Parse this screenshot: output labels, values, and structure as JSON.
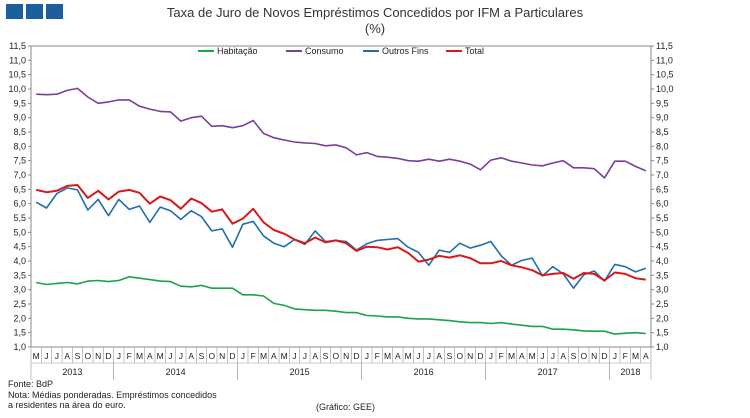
{
  "colors": {
    "habitacao": "#1aa34a",
    "consumo": "#7b3f98",
    "outros": "#1f6fae",
    "total": "#d7191c",
    "logo": "#1d5f9e"
  },
  "chart_data": {
    "type": "line",
    "title": "Taxa de Juro de Novos Empréstimos Concedidos por IFM a Particulares",
    "subtitle": "(%)",
    "ylim": [
      1.0,
      11.5
    ],
    "ytick_step": 0.5,
    "month_labels": [
      "M",
      "J",
      "J",
      "A",
      "S",
      "O",
      "N",
      "D",
      "J",
      "F",
      "M",
      "A",
      "M",
      "J",
      "J",
      "A",
      "S",
      "O",
      "N",
      "D",
      "J",
      "F",
      "M",
      "A",
      "M",
      "J",
      "J",
      "A",
      "S",
      "O",
      "N",
      "D",
      "J",
      "F",
      "M",
      "A",
      "M",
      "J",
      "J",
      "A",
      "S",
      "O",
      "N",
      "D",
      "J",
      "F",
      "M",
      "A",
      "M",
      "J",
      "J",
      "A",
      "S",
      "O",
      "N",
      "D",
      "J",
      "F",
      "M",
      "A"
    ],
    "year_labels": [
      {
        "label": "2013",
        "start": 0,
        "end": 7
      },
      {
        "label": "2014",
        "start": 8,
        "end": 19
      },
      {
        "label": "2015",
        "start": 20,
        "end": 31
      },
      {
        "label": "2016",
        "start": 32,
        "end": 43
      },
      {
        "label": "2017",
        "start": 44,
        "end": 55
      },
      {
        "label": "2018",
        "start": 56,
        "end": 59
      }
    ],
    "series": [
      {
        "name": "Habitação",
        "key": "habitacao",
        "values": [
          3.25,
          3.18,
          3.22,
          3.25,
          3.2,
          3.3,
          3.32,
          3.28,
          3.32,
          3.45,
          3.4,
          3.35,
          3.3,
          3.28,
          3.12,
          3.1,
          3.15,
          3.05,
          3.05,
          3.05,
          2.82,
          2.82,
          2.78,
          2.52,
          2.45,
          2.33,
          2.3,
          2.28,
          2.28,
          2.25,
          2.2,
          2.2,
          2.1,
          2.08,
          2.05,
          2.05,
          2.0,
          1.98,
          1.98,
          1.95,
          1.92,
          1.88,
          1.85,
          1.85,
          1.82,
          1.85,
          1.8,
          1.76,
          1.72,
          1.72,
          1.62,
          1.62,
          1.6,
          1.56,
          1.55,
          1.55,
          1.45,
          1.48,
          1.5,
          1.47
        ]
      },
      {
        "name": "Consumo",
        "key": "consumo",
        "values": [
          9.82,
          9.8,
          9.82,
          9.95,
          10.02,
          9.72,
          9.5,
          9.55,
          9.62,
          9.62,
          9.4,
          9.3,
          9.22,
          9.2,
          8.88,
          9.0,
          9.05,
          8.7,
          8.72,
          8.65,
          8.72,
          8.9,
          8.45,
          8.3,
          8.22,
          8.15,
          8.12,
          8.1,
          8.02,
          8.05,
          7.95,
          7.7,
          7.78,
          7.65,
          7.62,
          7.58,
          7.5,
          7.48,
          7.55,
          7.48,
          7.55,
          7.48,
          7.38,
          7.18,
          7.52,
          7.6,
          7.48,
          7.42,
          7.35,
          7.32,
          7.42,
          7.5,
          7.25,
          7.25,
          7.22,
          6.9,
          7.48,
          7.48,
          7.3,
          7.15
        ]
      },
      {
        "name": "Outros Fins",
        "key": "outros",
        "values": [
          6.05,
          5.85,
          6.35,
          6.55,
          6.48,
          5.78,
          6.15,
          5.58,
          6.15,
          5.8,
          5.92,
          5.35,
          5.88,
          5.75,
          5.45,
          5.75,
          5.55,
          5.05,
          5.12,
          4.48,
          5.28,
          5.38,
          4.88,
          4.62,
          4.5,
          4.75,
          4.58,
          5.05,
          4.68,
          4.72,
          4.68,
          4.38,
          4.6,
          4.72,
          4.75,
          4.78,
          4.48,
          4.3,
          3.85,
          4.38,
          4.3,
          4.62,
          4.45,
          4.55,
          4.68,
          4.18,
          3.85,
          4.02,
          4.1,
          3.48,
          3.8,
          3.55,
          3.05,
          3.52,
          3.65,
          3.3,
          3.88,
          3.8,
          3.62,
          3.75
        ]
      },
      {
        "name": "Total",
        "key": "total",
        "values": [
          6.48,
          6.4,
          6.45,
          6.62,
          6.65,
          6.2,
          6.45,
          6.15,
          6.42,
          6.48,
          6.38,
          6.0,
          6.25,
          6.12,
          5.82,
          6.18,
          6.02,
          5.72,
          5.8,
          5.3,
          5.48,
          5.82,
          5.35,
          5.08,
          4.95,
          4.75,
          4.62,
          4.82,
          4.65,
          4.72,
          4.62,
          4.35,
          4.5,
          4.48,
          4.4,
          4.48,
          4.28,
          3.98,
          4.05,
          4.18,
          4.12,
          4.2,
          4.1,
          3.92,
          3.92,
          4.0,
          3.85,
          3.78,
          3.68,
          3.5,
          3.55,
          3.58,
          3.38,
          3.58,
          3.55,
          3.32,
          3.6,
          3.55,
          3.4,
          3.35
        ]
      }
    ]
  },
  "footer": {
    "fonte": "Fonte: BdP",
    "nota1": "Nota: Médias ponderadas.  Empréstimos concedidos",
    "nota2": "a residentes na área do euro.",
    "grafico": "(Gráfico: GEE)"
  }
}
